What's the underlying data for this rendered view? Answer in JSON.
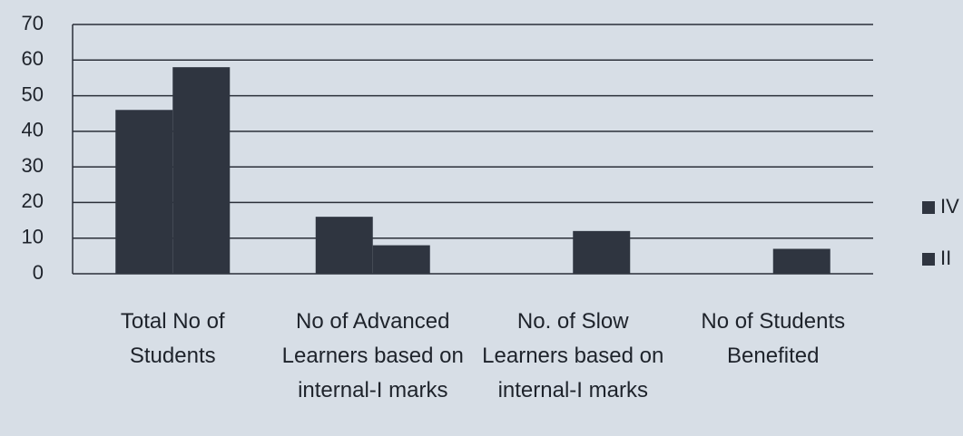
{
  "chart_data": {
    "type": "bar",
    "categories": [
      "Total No of Students",
      "No of Advanced Learners based on internal-I marks",
      "No. of Slow Learners based on internal-I marks",
      "No of Students Benefited"
    ],
    "series": [
      {
        "name": "IV",
        "color": "#2f3540",
        "values": [
          46,
          16,
          0,
          0
        ]
      },
      {
        "name": "II",
        "color": "#2f3540",
        "values": [
          58,
          8,
          12,
          7
        ]
      }
    ],
    "ylim": [
      0,
      70
    ],
    "yticks": [
      0,
      10,
      20,
      30,
      40,
      50,
      60,
      70
    ],
    "grid": true,
    "legend": "right"
  }
}
